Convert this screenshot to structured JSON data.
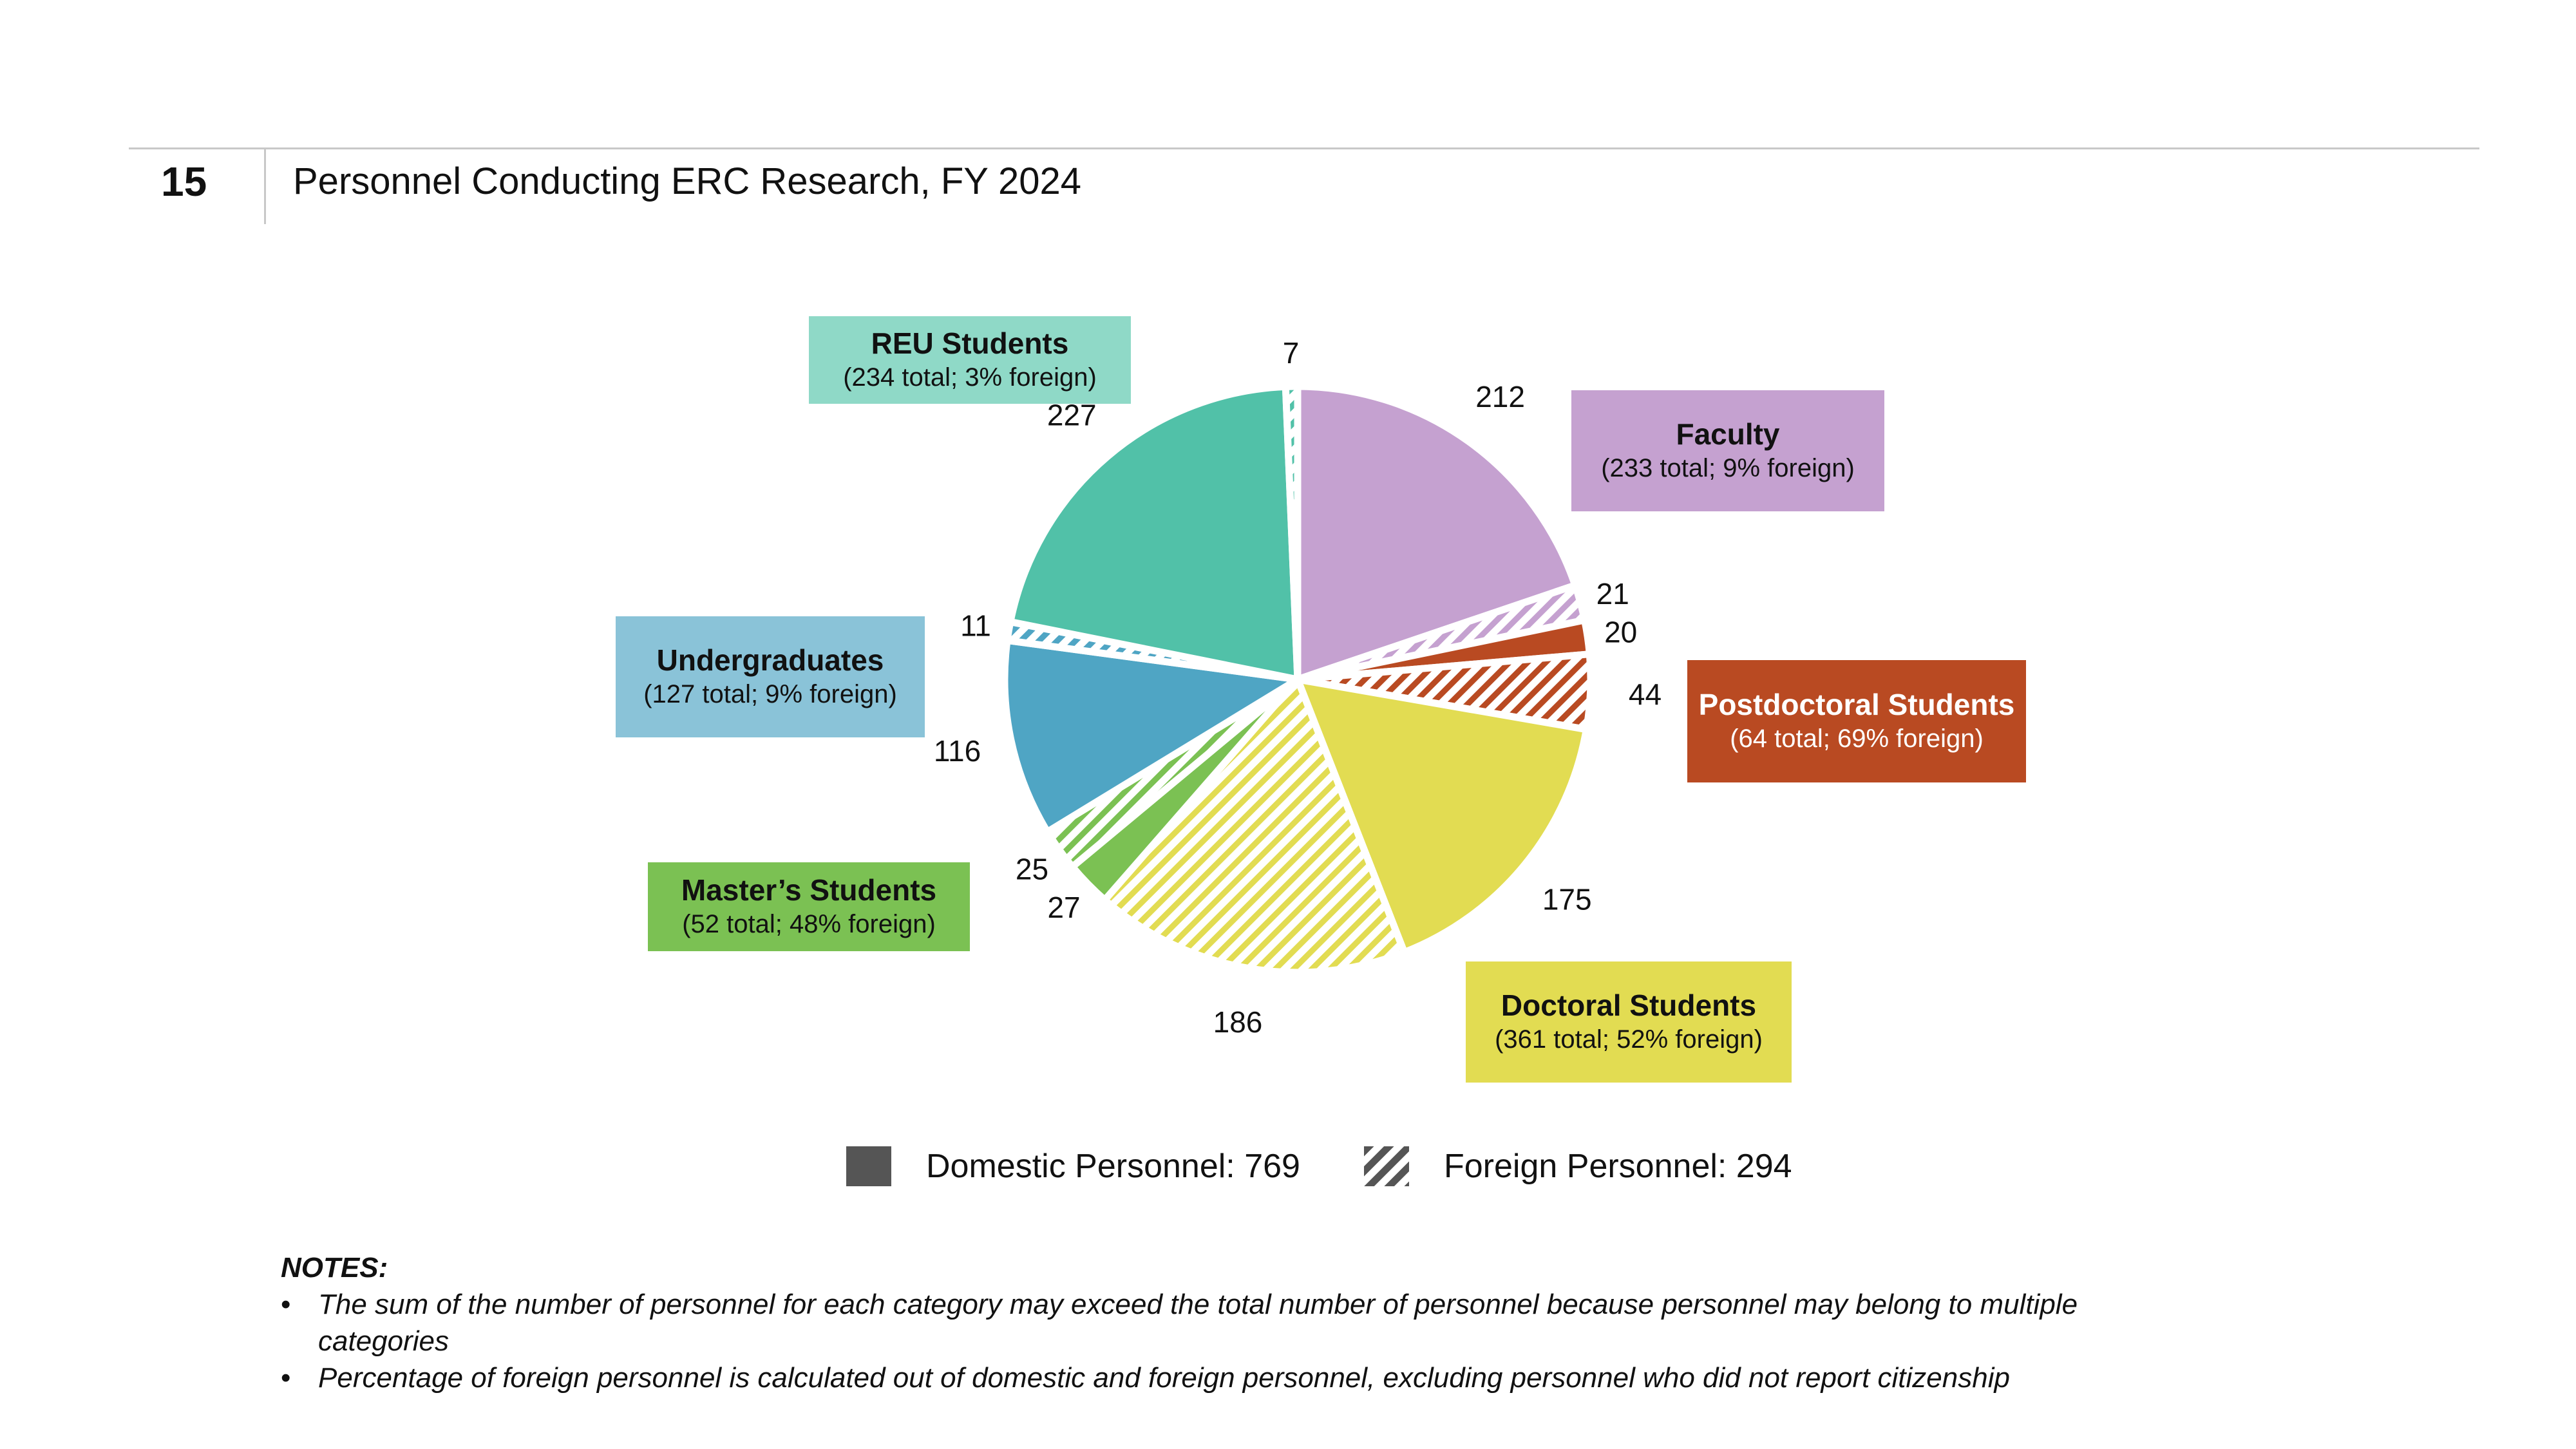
{
  "figure": {
    "number": "15",
    "title": "Personnel Conducting ERC Research, FY 2024"
  },
  "colors": {
    "faculty": "#c5a1d0",
    "postdoctoral": "#b94a22",
    "doctoral": "#e2dc52",
    "masters": "#7bc153",
    "undergraduates": "#4fa5c4",
    "reu": "#51c1a8"
  },
  "chart_data": {
    "type": "pie",
    "title": "Personnel Conducting ERC Research, FY 2024",
    "slices": [
      {
        "category": "Faculty",
        "type": "Domestic",
        "value": 212,
        "color": "#c5a1d0",
        "pattern": "solid"
      },
      {
        "category": "Faculty",
        "type": "Foreign",
        "value": 21,
        "color": "#c5a1d0",
        "pattern": "hatch"
      },
      {
        "category": "Postdoctoral Students",
        "type": "Domestic",
        "value": 20,
        "color": "#b94a22",
        "pattern": "solid"
      },
      {
        "category": "Postdoctoral Students",
        "type": "Foreign",
        "value": 44,
        "color": "#b94a22",
        "pattern": "hatch"
      },
      {
        "category": "Doctoral Students",
        "type": "Domestic",
        "value": 175,
        "color": "#e2dc52",
        "pattern": "solid"
      },
      {
        "category": "Doctoral Students",
        "type": "Foreign",
        "value": 186,
        "color": "#e2dc52",
        "pattern": "hatch"
      },
      {
        "category": "Master's Students",
        "type": "Domestic",
        "value": 27,
        "color": "#7bc153",
        "pattern": "solid"
      },
      {
        "category": "Master's Students",
        "type": "Foreign",
        "value": 25,
        "color": "#7bc153",
        "pattern": "hatch"
      },
      {
        "category": "Undergraduates",
        "type": "Domestic",
        "value": 116,
        "color": "#4fa5c4",
        "pattern": "solid"
      },
      {
        "category": "Undergraduates",
        "type": "Foreign",
        "value": 11,
        "color": "#4fa5c4",
        "pattern": "hatch"
      },
      {
        "category": "REU Students",
        "type": "Domestic",
        "value": 227,
        "color": "#51c1a8",
        "pattern": "solid"
      },
      {
        "category": "REU Students",
        "type": "Foreign",
        "value": 7,
        "color": "#51c1a8",
        "pattern": "hatch"
      }
    ],
    "category_labels": [
      {
        "key": "reu",
        "name": "REU Students",
        "detail": "(234 total; 3% foreign)"
      },
      {
        "key": "faculty",
        "name": "Faculty",
        "detail": "(233 total; 9% foreign)"
      },
      {
        "key": "undergraduates",
        "name": "Undergraduates",
        "detail": "(127 total; 9% foreign)"
      },
      {
        "key": "postdoctoral",
        "name": "Postdoctoral Students",
        "detail": "(64 total; 69% foreign)"
      },
      {
        "key": "masters",
        "name": "Master’s Students",
        "detail": "(52 total; 48% foreign)"
      },
      {
        "key": "doctoral",
        "name": "Doctoral Students",
        "detail": "(361 total; 52% foreign)"
      }
    ],
    "legend": [
      {
        "label": "Domestic Personnel: 769",
        "pattern": "solid"
      },
      {
        "label": "Foreign Personnel: 294",
        "pattern": "hatch"
      }
    ]
  },
  "notes": {
    "heading": "NOTES:",
    "items": [
      "The sum of the number of personnel for each category may exceed the total number of personnel because personnel may belong to multiple categories",
      "Percentage of foreign personnel is calculated out of domestic and foreign personnel, excluding personnel who did not report citizenship"
    ]
  }
}
